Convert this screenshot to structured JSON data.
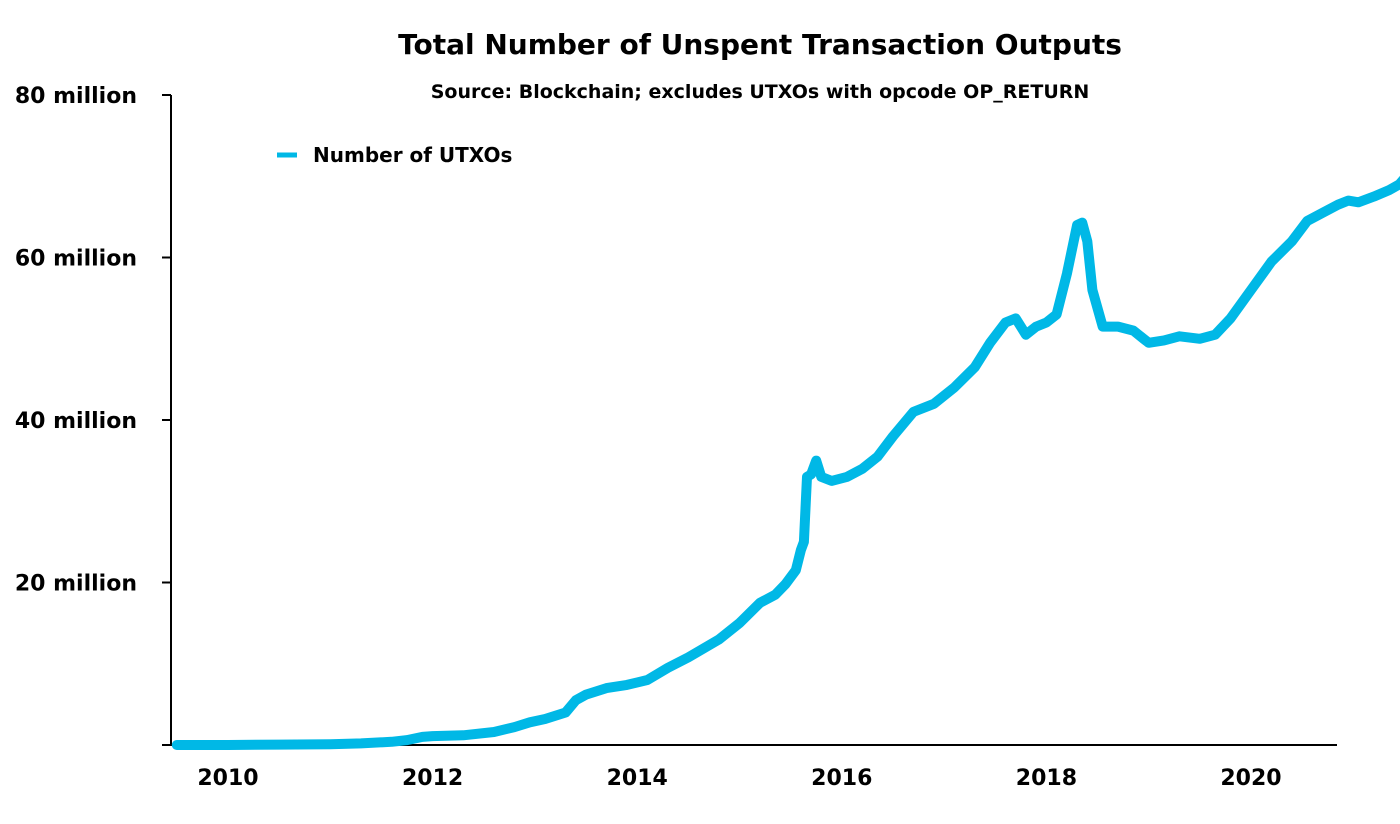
{
  "chart_data": {
    "type": "line",
    "title": "Total Number of Unspent Transaction Outputs",
    "subtitle": "Source: Blockchain; excludes UTXOs with opcode OP_RETURN",
    "xlabel": "",
    "ylabel": "",
    "xlim": [
      2009.5,
      2020.9
    ],
    "ylim": [
      0,
      80
    ],
    "x_ticks": [
      2010,
      2012,
      2014,
      2016,
      2018,
      2020
    ],
    "x_tick_labels": [
      "2010",
      "2012",
      "2014",
      "2016",
      "2018",
      "2020"
    ],
    "y_ticks": [
      0,
      20,
      40,
      60,
      80
    ],
    "y_tick_labels": [
      "",
      "20 million",
      "40 million",
      "60 million",
      "80 million"
    ],
    "grid": false,
    "legend_position": "top-left",
    "series": [
      {
        "name": "Number of UTXOs",
        "color": "#00b8e6",
        "unit": "million",
        "points": [
          [
            2009.5,
            0.0
          ],
          [
            2010.0,
            0.0
          ],
          [
            2010.5,
            0.05
          ],
          [
            2011.0,
            0.1
          ],
          [
            2011.3,
            0.2
          ],
          [
            2011.6,
            0.4
          ],
          [
            2011.75,
            0.6
          ],
          [
            2011.9,
            1.0
          ],
          [
            2012.0,
            1.1
          ],
          [
            2012.3,
            1.2
          ],
          [
            2012.6,
            1.6
          ],
          [
            2012.8,
            2.2
          ],
          [
            2012.95,
            2.8
          ],
          [
            2013.1,
            3.2
          ],
          [
            2013.3,
            4.0
          ],
          [
            2013.4,
            5.5
          ],
          [
            2013.5,
            6.2
          ],
          [
            2013.7,
            7.0
          ],
          [
            2013.9,
            7.4
          ],
          [
            2014.1,
            8.0
          ],
          [
            2014.3,
            9.5
          ],
          [
            2014.5,
            10.8
          ],
          [
            2014.8,
            13.0
          ],
          [
            2015.0,
            15.0
          ],
          [
            2015.2,
            17.5
          ],
          [
            2015.35,
            18.5
          ],
          [
            2015.45,
            19.8
          ],
          [
            2015.55,
            21.5
          ],
          [
            2015.6,
            24.0
          ],
          [
            2015.63,
            25.0
          ],
          [
            2015.66,
            33.0
          ],
          [
            2015.7,
            33.3
          ],
          [
            2015.75,
            35.0
          ],
          [
            2015.8,
            33.0
          ],
          [
            2015.9,
            32.5
          ],
          [
            2016.05,
            33.0
          ],
          [
            2016.2,
            34.0
          ],
          [
            2016.35,
            35.5
          ],
          [
            2016.5,
            38.0
          ],
          [
            2016.7,
            41.0
          ],
          [
            2016.9,
            42.0
          ],
          [
            2017.1,
            44.0
          ],
          [
            2017.3,
            46.5
          ],
          [
            2017.45,
            49.5
          ],
          [
            2017.6,
            52.0
          ],
          [
            2017.7,
            52.5
          ],
          [
            2017.8,
            50.5
          ],
          [
            2017.9,
            51.5
          ],
          [
            2018.0,
            52.0
          ],
          [
            2018.1,
            53.0
          ],
          [
            2018.2,
            58.0
          ],
          [
            2018.3,
            64.0
          ],
          [
            2018.35,
            64.3
          ],
          [
            2018.4,
            62.0
          ],
          [
            2018.45,
            56.0
          ],
          [
            2018.55,
            51.5
          ],
          [
            2018.7,
            51.5
          ],
          [
            2018.85,
            51.0
          ],
          [
            2018.95,
            50.0
          ],
          [
            2019.0,
            49.5
          ],
          [
            2019.15,
            49.8
          ],
          [
            2019.3,
            50.3
          ],
          [
            2019.5,
            50.0
          ],
          [
            2019.65,
            50.5
          ],
          [
            2019.8,
            52.5
          ],
          [
            2020.0,
            56.0
          ],
          [
            2020.2,
            59.5
          ],
          [
            2020.4,
            62.0
          ],
          [
            2020.55,
            64.5
          ],
          [
            2020.7,
            65.5
          ],
          [
            2020.85,
            66.5
          ],
          [
            2020.95,
            67.0
          ],
          [
            2021.05,
            66.8
          ],
          [
            2021.2,
            67.5
          ],
          [
            2021.35,
            68.3
          ],
          [
            2021.45,
            69.0
          ],
          [
            2021.55,
            70.5
          ],
          [
            2021.63,
            69.5
          ]
        ]
      }
    ]
  }
}
